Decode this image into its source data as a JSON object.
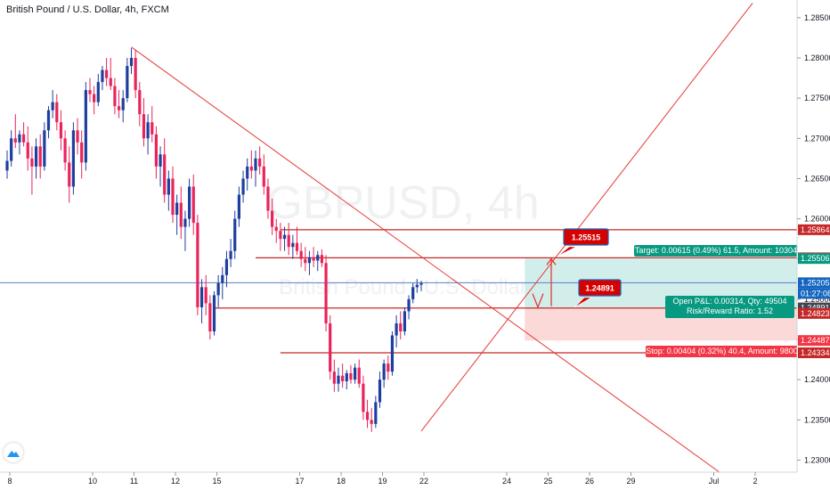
{
  "header": {
    "title": "British Pound / U.S. Dollar, 4h, FXCM"
  },
  "watermark": {
    "symbol": "GBPUSD, 4h",
    "description": "British Pound / U.S. Dollar"
  },
  "colors": {
    "up": "#1e3f9e",
    "down": "#e9245a",
    "trendline": "#e53935",
    "level": "#c62828",
    "current_price_line": "#5b7ec9",
    "target_zone": "#d2eeeb",
    "stop_zone": "#fbd9d9",
    "target_tag": "#089981",
    "stop_tag": "#f23645",
    "info_tag": "#26a69a",
    "price_tag_dark": "#434651",
    "arrow": "#e53935"
  },
  "annotations": {
    "entry_price_label": "1.25515",
    "target_price_label": "1.24891",
    "target_text": "Target: 0.00615 (0.49%) 61.5, Amount: 10304",
    "open_pnl_text": "Open P&L: 0.00314, Qty: 49504",
    "risk_reward_text": "Risk/Reward Ratio: 1.52",
    "stop_text": "Stop: 0.00404 (0.32%) 40.4, Amount: 9800",
    "countdown": "01:27:08"
  },
  "chart_data": {
    "type": "candlestick",
    "symbol": "GBPUSD",
    "timeframe": "4h",
    "ylim": [
      1.2285,
      1.2872
    ],
    "y_ticks": [
      "1.23000",
      "1.23500",
      "1.24000",
      "1.24500",
      "1.25000",
      "1.25500",
      "1.26000",
      "1.26500",
      "1.27000",
      "1.27500",
      "1.28000",
      "1.28500"
    ],
    "x_ticks": [
      {
        "label": "8",
        "i": 0
      },
      {
        "label": "10",
        "i": 20
      },
      {
        "label": "11",
        "i": 30
      },
      {
        "label": "12",
        "i": 40
      },
      {
        "label": "15",
        "i": 50
      },
      {
        "label": "17",
        "i": 70
      },
      {
        "label": "18",
        "i": 80
      },
      {
        "label": "19",
        "i": 90
      },
      {
        "label": "22",
        "i": 100
      },
      {
        "label": "24",
        "i": 120
      },
      {
        "label": "25",
        "i": 130
      },
      {
        "label": "26",
        "i": 140
      },
      {
        "label": "29",
        "i": 150
      },
      {
        "label": "Jul",
        "i": 170
      },
      {
        "label": "2",
        "i": 180
      }
    ],
    "candles": [
      {
        "o": 1.266,
        "h": 1.2685,
        "l": 1.265,
        "c": 1.2672
      },
      {
        "o": 1.2672,
        "h": 1.271,
        "l": 1.2665,
        "c": 1.27
      },
      {
        "o": 1.27,
        "h": 1.273,
        "l": 1.2688,
        "c": 1.2695
      },
      {
        "o": 1.2695,
        "h": 1.271,
        "l": 1.268,
        "c": 1.2705
      },
      {
        "o": 1.2705,
        "h": 1.272,
        "l": 1.269,
        "c": 1.2695
      },
      {
        "o": 1.2695,
        "h": 1.2715,
        "l": 1.266,
        "c": 1.2675
      },
      {
        "o": 1.2675,
        "h": 1.269,
        "l": 1.263,
        "c": 1.2665
      },
      {
        "o": 1.2665,
        "h": 1.27,
        "l": 1.265,
        "c": 1.269
      },
      {
        "o": 1.269,
        "h": 1.2705,
        "l": 1.265,
        "c": 1.2665
      },
      {
        "o": 1.2665,
        "h": 1.272,
        "l": 1.266,
        "c": 1.271
      },
      {
        "o": 1.271,
        "h": 1.274,
        "l": 1.27,
        "c": 1.2735
      },
      {
        "o": 1.2735,
        "h": 1.276,
        "l": 1.2725,
        "c": 1.2745
      },
      {
        "o": 1.2745,
        "h": 1.2755,
        "l": 1.271,
        "c": 1.272
      },
      {
        "o": 1.272,
        "h": 1.2735,
        "l": 1.2685,
        "c": 1.27
      },
      {
        "o": 1.27,
        "h": 1.271,
        "l": 1.266,
        "c": 1.267
      },
      {
        "o": 1.267,
        "h": 1.269,
        "l": 1.262,
        "c": 1.264
      },
      {
        "o": 1.264,
        "h": 1.272,
        "l": 1.263,
        "c": 1.271
      },
      {
        "o": 1.271,
        "h": 1.2725,
        "l": 1.268,
        "c": 1.2695
      },
      {
        "o": 1.2695,
        "h": 1.271,
        "l": 1.265,
        "c": 1.267
      },
      {
        "o": 1.267,
        "h": 1.277,
        "l": 1.266,
        "c": 1.276
      },
      {
        "o": 1.276,
        "h": 1.2775,
        "l": 1.2745,
        "c": 1.2755
      },
      {
        "o": 1.2755,
        "h": 1.2765,
        "l": 1.273,
        "c": 1.2745
      },
      {
        "o": 1.2745,
        "h": 1.278,
        "l": 1.274,
        "c": 1.277
      },
      {
        "o": 1.277,
        "h": 1.279,
        "l": 1.276,
        "c": 1.2785
      },
      {
        "o": 1.2785,
        "h": 1.28,
        "l": 1.2765,
        "c": 1.2775
      },
      {
        "o": 1.2775,
        "h": 1.28,
        "l": 1.276,
        "c": 1.2765
      },
      {
        "o": 1.2765,
        "h": 1.2775,
        "l": 1.273,
        "c": 1.274
      },
      {
        "o": 1.274,
        "h": 1.276,
        "l": 1.2725,
        "c": 1.2735
      },
      {
        "o": 1.2735,
        "h": 1.276,
        "l": 1.272,
        "c": 1.275
      },
      {
        "o": 1.275,
        "h": 1.28,
        "l": 1.2745,
        "c": 1.279
      },
      {
        "o": 1.279,
        "h": 1.2812,
        "l": 1.278,
        "c": 1.28
      },
      {
        "o": 1.28,
        "h": 1.281,
        "l": 1.275,
        "c": 1.276
      },
      {
        "o": 1.276,
        "h": 1.277,
        "l": 1.2715,
        "c": 1.273
      },
      {
        "o": 1.273,
        "h": 1.275,
        "l": 1.269,
        "c": 1.27
      },
      {
        "o": 1.27,
        "h": 1.273,
        "l": 1.268,
        "c": 1.272
      },
      {
        "o": 1.272,
        "h": 1.274,
        "l": 1.2695,
        "c": 1.2705
      },
      {
        "o": 1.2705,
        "h": 1.2715,
        "l": 1.265,
        "c": 1.2665
      },
      {
        "o": 1.2665,
        "h": 1.269,
        "l": 1.264,
        "c": 1.268
      },
      {
        "o": 1.268,
        "h": 1.27,
        "l": 1.262,
        "c": 1.263
      },
      {
        "o": 1.263,
        "h": 1.266,
        "l": 1.261,
        "c": 1.265
      },
      {
        "o": 1.265,
        "h": 1.2665,
        "l": 1.2595,
        "c": 1.2605
      },
      {
        "o": 1.2605,
        "h": 1.263,
        "l": 1.258,
        "c": 1.262
      },
      {
        "o": 1.262,
        "h": 1.264,
        "l": 1.2575,
        "c": 1.259
      },
      {
        "o": 1.259,
        "h": 1.261,
        "l": 1.256,
        "c": 1.26
      },
      {
        "o": 1.26,
        "h": 1.265,
        "l": 1.259,
        "c": 1.264
      },
      {
        "o": 1.264,
        "h": 1.2655,
        "l": 1.258,
        "c": 1.2595
      },
      {
        "o": 1.2595,
        "h": 1.2605,
        "l": 1.248,
        "c": 1.249
      },
      {
        "o": 1.249,
        "h": 1.2525,
        "l": 1.247,
        "c": 1.2515
      },
      {
        "o": 1.2515,
        "h": 1.253,
        "l": 1.248,
        "c": 1.2495
      },
      {
        "o": 1.2495,
        "h": 1.2505,
        "l": 1.245,
        "c": 1.246
      },
      {
        "o": 1.246,
        "h": 1.251,
        "l": 1.2455,
        "c": 1.2505
      },
      {
        "o": 1.2505,
        "h": 1.253,
        "l": 1.249,
        "c": 1.252
      },
      {
        "o": 1.252,
        "h": 1.254,
        "l": 1.25,
        "c": 1.253
      },
      {
        "o": 1.253,
        "h": 1.256,
        "l": 1.2515,
        "c": 1.255
      },
      {
        "o": 1.255,
        "h": 1.2575,
        "l": 1.254,
        "c": 1.256
      },
      {
        "o": 1.256,
        "h": 1.261,
        "l": 1.255,
        "c": 1.26
      },
      {
        "o": 1.26,
        "h": 1.264,
        "l": 1.259,
        "c": 1.263
      },
      {
        "o": 1.263,
        "h": 1.266,
        "l": 1.262,
        "c": 1.265
      },
      {
        "o": 1.265,
        "h": 1.2675,
        "l": 1.2635,
        "c": 1.2665
      },
      {
        "o": 1.2665,
        "h": 1.2685,
        "l": 1.265,
        "c": 1.266
      },
      {
        "o": 1.266,
        "h": 1.2685,
        "l": 1.264,
        "c": 1.2675
      },
      {
        "o": 1.2675,
        "h": 1.269,
        "l": 1.2655,
        "c": 1.2665
      },
      {
        "o": 1.2665,
        "h": 1.268,
        "l": 1.263,
        "c": 1.264
      },
      {
        "o": 1.264,
        "h": 1.265,
        "l": 1.26,
        "c": 1.261
      },
      {
        "o": 1.261,
        "h": 1.2625,
        "l": 1.258,
        "c": 1.259
      },
      {
        "o": 1.259,
        "h": 1.26,
        "l": 1.257,
        "c": 1.2585
      },
      {
        "o": 1.2585,
        "h": 1.2595,
        "l": 1.256,
        "c": 1.2575
      },
      {
        "o": 1.2575,
        "h": 1.259,
        "l": 1.256,
        "c": 1.258
      },
      {
        "o": 1.258,
        "h": 1.2595,
        "l": 1.2555,
        "c": 1.2565
      },
      {
        "o": 1.2565,
        "h": 1.258,
        "l": 1.255,
        "c": 1.257
      },
      {
        "o": 1.257,
        "h": 1.259,
        "l": 1.2555,
        "c": 1.256
      },
      {
        "o": 1.256,
        "h": 1.257,
        "l": 1.254,
        "c": 1.255
      },
      {
        "o": 1.255,
        "h": 1.2565,
        "l": 1.2535,
        "c": 1.2545
      },
      {
        "o": 1.2545,
        "h": 1.256,
        "l": 1.253,
        "c": 1.2552
      },
      {
        "o": 1.2552,
        "h": 1.2565,
        "l": 1.254,
        "c": 1.2548
      },
      {
        "o": 1.2548,
        "h": 1.256,
        "l": 1.2535,
        "c": 1.2555
      },
      {
        "o": 1.2555,
        "h": 1.2562,
        "l": 1.254,
        "c": 1.2545
      },
      {
        "o": 1.2545,
        "h": 1.2555,
        "l": 1.246,
        "c": 1.247
      },
      {
        "o": 1.247,
        "h": 1.248,
        "l": 1.24,
        "c": 1.241
      },
      {
        "o": 1.241,
        "h": 1.2425,
        "l": 1.2385,
        "c": 1.2395
      },
      {
        "o": 1.2395,
        "h": 1.2415,
        "l": 1.2385,
        "c": 1.2405
      },
      {
        "o": 1.2405,
        "h": 1.242,
        "l": 1.239,
        "c": 1.2398
      },
      {
        "o": 1.2398,
        "h": 1.2412,
        "l": 1.2388,
        "c": 1.2408
      },
      {
        "o": 1.2408,
        "h": 1.2418,
        "l": 1.2395,
        "c": 1.24
      },
      {
        "o": 1.24,
        "h": 1.242,
        "l": 1.2395,
        "c": 1.2415
      },
      {
        "o": 1.2415,
        "h": 1.2425,
        "l": 1.239,
        "c": 1.2395
      },
      {
        "o": 1.2395,
        "h": 1.2405,
        "l": 1.235,
        "c": 1.236
      },
      {
        "o": 1.236,
        "h": 1.2375,
        "l": 1.234,
        "c": 1.235
      },
      {
        "o": 1.235,
        "h": 1.2365,
        "l": 1.2335,
        "c": 1.2345
      },
      {
        "o": 1.2345,
        "h": 1.238,
        "l": 1.234,
        "c": 1.2372
      },
      {
        "o": 1.2372,
        "h": 1.241,
        "l": 1.2365,
        "c": 1.24
      },
      {
        "o": 1.24,
        "h": 1.2425,
        "l": 1.239,
        "c": 1.242
      },
      {
        "o": 1.242,
        "h": 1.243,
        "l": 1.24,
        "c": 1.241
      },
      {
        "o": 1.241,
        "h": 1.246,
        "l": 1.2405,
        "c": 1.2455
      },
      {
        "o": 1.2455,
        "h": 1.248,
        "l": 1.244,
        "c": 1.247
      },
      {
        "o": 1.247,
        "h": 1.2485,
        "l": 1.245,
        "c": 1.246
      },
      {
        "o": 1.246,
        "h": 1.249,
        "l": 1.2455,
        "c": 1.2485
      },
      {
        "o": 1.2485,
        "h": 1.2505,
        "l": 1.2475,
        "c": 1.25
      },
      {
        "o": 1.25,
        "h": 1.252,
        "l": 1.2495,
        "c": 1.2515
      },
      {
        "o": 1.2515,
        "h": 1.2525,
        "l": 1.2508,
        "c": 1.2518
      },
      {
        "o": 1.2518,
        "h": 1.2523,
        "l": 1.251,
        "c": 1.252
      }
    ],
    "trendlines": [
      {
        "from": {
          "i": 30,
          "price": 1.28135
        },
        "to": {
          "i": 172,
          "price": 1.2285
        }
      },
      {
        "from": {
          "i": 100,
          "price": 1.2336
        },
        "to": {
          "i": 180,
          "price": 1.2868
        }
      }
    ],
    "horizontal_levels": [
      {
        "price": 1.25864,
        "from_i": 66,
        "label": "1.25864"
      },
      {
        "price": 1.25515,
        "from_i": 60,
        "label": "1.25515"
      },
      {
        "price": 1.24891,
        "from_i": 50,
        "label": "1.24891"
      },
      {
        "price": 1.24334,
        "from_i": 66,
        "label": "1.24334"
      }
    ],
    "position": {
      "entry": 1.24891,
      "target": 1.25506,
      "stop": 1.24487,
      "from_i": 125,
      "current": 1.25205,
      "target_label": "1.25506",
      "stop_label": "1.24487",
      "current_label": "1.25205",
      "stop_entry_label": "1.24823"
    }
  }
}
